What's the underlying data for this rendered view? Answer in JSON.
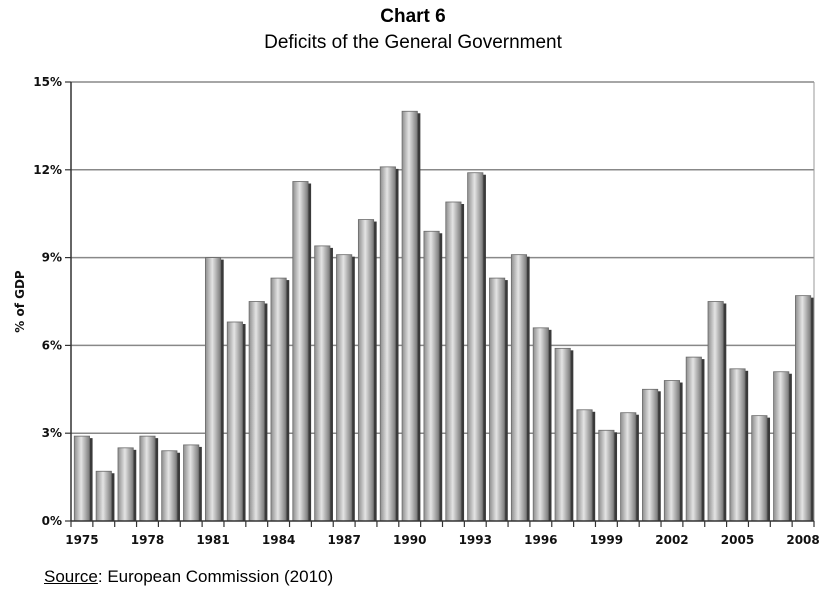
{
  "chart_data": {
    "type": "bar",
    "title": "Chart 6",
    "subtitle": "Deficits of the General Government",
    "ylabel": "% of GDP",
    "xlabel": "",
    "ylim": [
      0,
      15
    ],
    "yticks": [
      "0%",
      "3%",
      "6%",
      "9%",
      "12%",
      "15%"
    ],
    "ytick_values": [
      0,
      3,
      6,
      9,
      12,
      15
    ],
    "grid": true,
    "x_tick_labels": [
      "1975",
      "1978",
      "1981",
      "1984",
      "1987",
      "1990",
      "1993",
      "1996",
      "1999",
      "2002",
      "2005",
      "2008"
    ],
    "categories": [
      "1975",
      "1976",
      "1977",
      "1978",
      "1979",
      "1980",
      "1981",
      "1982",
      "1983",
      "1984",
      "1985",
      "1986",
      "1987",
      "1988",
      "1989",
      "1990",
      "1991",
      "1992",
      "1993",
      "1994",
      "1995",
      "1996",
      "1997",
      "1998",
      "1999",
      "2000",
      "2001",
      "2002",
      "2003",
      "2004",
      "2005",
      "2006",
      "2007",
      "2008"
    ],
    "values": [
      2.9,
      1.7,
      2.5,
      2.9,
      2.4,
      2.6,
      9.0,
      6.8,
      7.5,
      8.3,
      11.6,
      9.4,
      9.1,
      10.3,
      12.1,
      14.0,
      9.9,
      10.9,
      11.9,
      8.3,
      9.1,
      6.6,
      5.9,
      3.8,
      3.1,
      3.7,
      4.5,
      4.8,
      5.6,
      7.5,
      5.2,
      3.6,
      5.1,
      7.7
    ]
  },
  "source": {
    "label": "Source",
    "text": ": European Commission (2010)"
  }
}
